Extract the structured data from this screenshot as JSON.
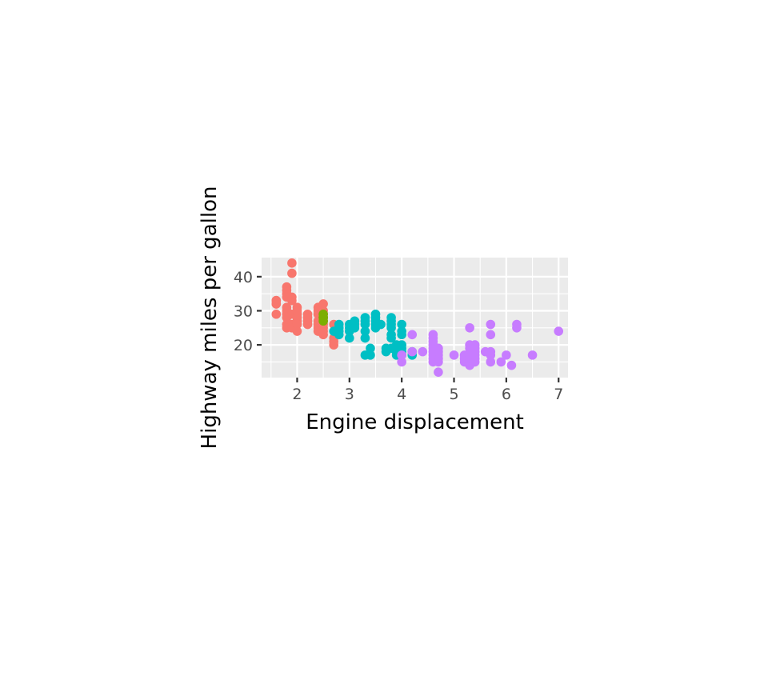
{
  "chart_data": {
    "type": "scatter",
    "title": "",
    "xlabel": "Engine displacement",
    "ylabel": "Highway miles per gallon",
    "xlim": [
      1.32,
      7.18
    ],
    "ylim": [
      10.4,
      45.6
    ],
    "x_ticks": [
      2,
      3,
      4,
      5,
      6,
      7
    ],
    "y_ticks": [
      20,
      30,
      40
    ],
    "grid": true,
    "legend": "none",
    "series": [
      {
        "color": "#F8766D",
        "points": [
          [
            1.6,
            33
          ],
          [
            1.6,
            32
          ],
          [
            1.6,
            29
          ],
          [
            1.6,
            32
          ],
          [
            1.6,
            33
          ],
          [
            1.8,
            29
          ],
          [
            1.8,
            35
          ],
          [
            1.8,
            37
          ],
          [
            1.8,
            36
          ],
          [
            1.8,
            26
          ],
          [
            1.8,
            25
          ],
          [
            1.8,
            34
          ],
          [
            1.8,
            30
          ],
          [
            1.8,
            31
          ],
          [
            1.8,
            28
          ],
          [
            1.9,
            44
          ],
          [
            1.9,
            41
          ],
          [
            1.9,
            29
          ],
          [
            1.9,
            26
          ],
          [
            1.9,
            25
          ],
          [
            1.9,
            33
          ],
          [
            1.9,
            34
          ],
          [
            2.0,
            31
          ],
          [
            2.0,
            29
          ],
          [
            2.0,
            28
          ],
          [
            2.0,
            27
          ],
          [
            2.0,
            26
          ],
          [
            2.0,
            30
          ],
          [
            2.0,
            24
          ],
          [
            2.2,
            29
          ],
          [
            2.2,
            27
          ],
          [
            2.2,
            26
          ],
          [
            2.2,
            28
          ],
          [
            2.4,
            31
          ],
          [
            2.4,
            30
          ],
          [
            2.4,
            29
          ],
          [
            2.4,
            27
          ],
          [
            2.4,
            26
          ],
          [
            2.4,
            25
          ],
          [
            2.4,
            24
          ],
          [
            2.5,
            32
          ],
          [
            2.5,
            30
          ],
          [
            2.5,
            27
          ],
          [
            2.5,
            26
          ],
          [
            2.5,
            25
          ],
          [
            2.5,
            24
          ],
          [
            2.5,
            23
          ],
          [
            2.5,
            29
          ],
          [
            2.5,
            28
          ],
          [
            2.7,
            22
          ],
          [
            2.7,
            21
          ],
          [
            2.7,
            20
          ],
          [
            2.7,
            26
          ]
        ]
      },
      {
        "color": "#7CAE00",
        "points": [
          [
            2.5,
            29
          ],
          [
            2.5,
            28
          ],
          [
            2.5,
            27
          ],
          [
            2.5,
            28
          ]
        ]
      },
      {
        "color": "#00BFC4",
        "points": [
          [
            2.7,
            24
          ],
          [
            2.8,
            26
          ],
          [
            2.8,
            25
          ],
          [
            2.8,
            24
          ],
          [
            2.8,
            23
          ],
          [
            3.0,
            26
          ],
          [
            3.0,
            25
          ],
          [
            3.0,
            24
          ],
          [
            3.0,
            22
          ],
          [
            3.1,
            27
          ],
          [
            3.1,
            26
          ],
          [
            3.1,
            25
          ],
          [
            3.3,
            28
          ],
          [
            3.3,
            27
          ],
          [
            3.3,
            26
          ],
          [
            3.3,
            24
          ],
          [
            3.3,
            22
          ],
          [
            3.3,
            17
          ],
          [
            3.4,
            19
          ],
          [
            3.4,
            17
          ],
          [
            3.5,
            29
          ],
          [
            3.5,
            28
          ],
          [
            3.5,
            27
          ],
          [
            3.5,
            26
          ],
          [
            3.5,
            25
          ],
          [
            3.6,
            26
          ],
          [
            3.7,
            19
          ],
          [
            3.7,
            18
          ],
          [
            3.8,
            28
          ],
          [
            3.8,
            27
          ],
          [
            3.8,
            26
          ],
          [
            3.8,
            25
          ],
          [
            3.8,
            23
          ],
          [
            3.8,
            22
          ],
          [
            3.8,
            19
          ],
          [
            3.9,
            17
          ],
          [
            3.9,
            18
          ],
          [
            3.9,
            20
          ],
          [
            4.0,
            26
          ],
          [
            4.0,
            24
          ],
          [
            4.0,
            23
          ],
          [
            4.0,
            20
          ],
          [
            4.0,
            19
          ],
          [
            4.0,
            18
          ],
          [
            4.0,
            17
          ],
          [
            4.2,
            18
          ],
          [
            4.2,
            17
          ]
        ]
      },
      {
        "color": "#C77CFF",
        "points": [
          [
            4.0,
            15
          ],
          [
            4.0,
            17
          ],
          [
            4.2,
            23
          ],
          [
            4.2,
            18
          ],
          [
            4.4,
            18
          ],
          [
            4.6,
            23
          ],
          [
            4.6,
            22
          ],
          [
            4.6,
            21
          ],
          [
            4.6,
            20
          ],
          [
            4.6,
            19
          ],
          [
            4.6,
            18
          ],
          [
            4.6,
            17
          ],
          [
            4.6,
            16
          ],
          [
            4.6,
            15
          ],
          [
            4.7,
            19
          ],
          [
            4.7,
            17
          ],
          [
            4.7,
            16
          ],
          [
            4.7,
            15
          ],
          [
            4.7,
            12
          ],
          [
            4.7,
            18
          ],
          [
            5.0,
            17
          ],
          [
            5.2,
            17
          ],
          [
            5.2,
            15
          ],
          [
            5.2,
            16
          ],
          [
            5.3,
            25
          ],
          [
            5.3,
            20
          ],
          [
            5.3,
            19
          ],
          [
            5.3,
            17
          ],
          [
            5.3,
            16
          ],
          [
            5.3,
            15
          ],
          [
            5.3,
            14
          ],
          [
            5.4,
            20
          ],
          [
            5.4,
            19
          ],
          [
            5.4,
            18
          ],
          [
            5.4,
            17
          ],
          [
            5.4,
            16
          ],
          [
            5.4,
            15
          ],
          [
            5.6,
            18
          ],
          [
            5.7,
            26
          ],
          [
            5.7,
            23
          ],
          [
            5.7,
            18
          ],
          [
            5.7,
            17
          ],
          [
            5.7,
            15
          ],
          [
            5.9,
            15
          ],
          [
            6.0,
            17
          ],
          [
            6.1,
            14
          ],
          [
            6.2,
            26
          ],
          [
            6.2,
            25
          ],
          [
            6.5,
            17
          ],
          [
            7.0,
            24
          ]
        ]
      }
    ]
  }
}
